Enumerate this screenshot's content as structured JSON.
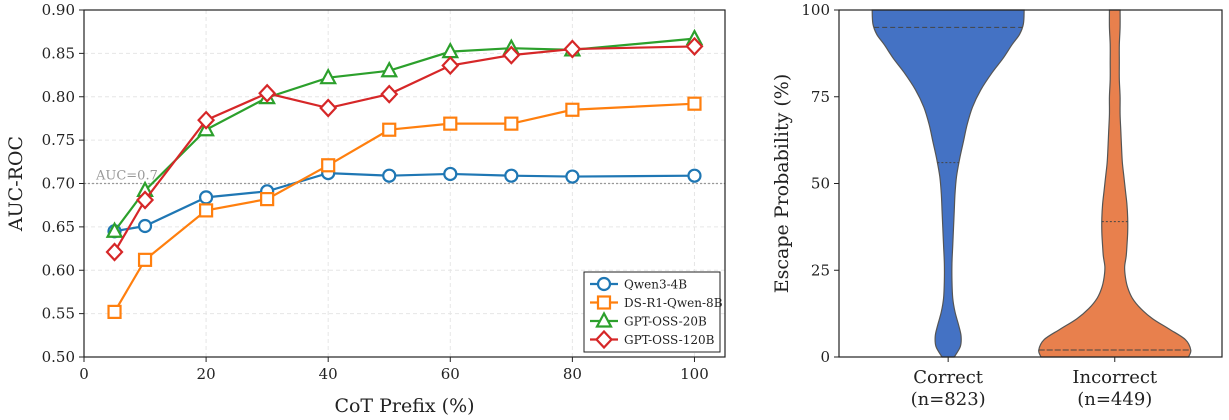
{
  "chart_data": [
    {
      "type": "line",
      "xlabel": "CoT Prefix (%)",
      "ylabel": "AUC-ROC",
      "xlim": [
        0,
        105
      ],
      "ylim": [
        0.5,
        0.9
      ],
      "xticks": [
        0,
        20,
        40,
        60,
        80,
        100
      ],
      "yticks": [
        0.5,
        0.55,
        0.6,
        0.65,
        0.7,
        0.75,
        0.8,
        0.85,
        0.9
      ],
      "ytick_labels": [
        "0.50",
        "0.55",
        "0.60",
        "0.65",
        "0.70",
        "0.75",
        "0.80",
        "0.85",
        "0.90"
      ],
      "grid": true,
      "legend_position": "bottom-right",
      "reference_line": {
        "y": 0.7,
        "label": "AUC=0.7"
      },
      "x": [
        5,
        10,
        20,
        30,
        40,
        50,
        60,
        70,
        80,
        100
      ],
      "series": [
        {
          "name": "Qwen3-4B",
          "color": "#1f77b4",
          "marker": "circle",
          "values": [
            0.645,
            0.651,
            0.684,
            0.691,
            0.712,
            0.709,
            0.711,
            0.709,
            0.708,
            0.709
          ]
        },
        {
          "name": "DS-R1-Qwen-8B",
          "color": "#ff7f0e",
          "marker": "square",
          "values": [
            0.552,
            0.612,
            0.669,
            0.682,
            0.721,
            0.762,
            0.769,
            0.769,
            0.785,
            0.792
          ]
        },
        {
          "name": "GPT-OSS-20B",
          "color": "#2ca02c",
          "marker": "triangle",
          "values": [
            0.645,
            0.692,
            0.762,
            0.799,
            0.822,
            0.83,
            0.852,
            0.856,
            0.854,
            0.867
          ]
        },
        {
          "name": "GPT-OSS-120B",
          "color": "#d62728",
          "marker": "diamond",
          "values": [
            0.621,
            0.681,
            0.773,
            0.804,
            0.787,
            0.803,
            0.836,
            0.848,
            0.855,
            0.858
          ]
        }
      ]
    },
    {
      "type": "violin",
      "ylabel": "Escape Probability (%)",
      "ylim": [
        0,
        100
      ],
      "yticks": [
        0,
        25,
        50,
        75,
        100
      ],
      "grid": false,
      "categories": [
        "Correct\n(n=823)",
        "Incorrect\n(n=449)"
      ],
      "groups": [
        {
          "label_lines": [
            "Correct",
            "(n=823)"
          ],
          "color": "#4472c4",
          "quartiles": {
            "q1": 56,
            "median": 95,
            "q3": 100
          },
          "density": [
            [
              0,
              0.08
            ],
            [
              3,
              0.16
            ],
            [
              6,
              0.17
            ],
            [
              9,
              0.14
            ],
            [
              13,
              0.09
            ],
            [
              17,
              0.06
            ],
            [
              22,
              0.05
            ],
            [
              27,
              0.05
            ],
            [
              32,
              0.06
            ],
            [
              37,
              0.07
            ],
            [
              42,
              0.08
            ],
            [
              47,
              0.09
            ],
            [
              52,
              0.11
            ],
            [
              57,
              0.15
            ],
            [
              62,
              0.2
            ],
            [
              67,
              0.25
            ],
            [
              72,
              0.32
            ],
            [
              77,
              0.43
            ],
            [
              82,
              0.58
            ],
            [
              86,
              0.72
            ],
            [
              90,
              0.84
            ],
            [
              93,
              0.94
            ],
            [
              96,
              0.99
            ],
            [
              100,
              1.0
            ]
          ]
        },
        {
          "label_lines": [
            "Incorrect",
            "(n=449)"
          ],
          "color": "#e8804d",
          "quartiles": {
            "q1": 2,
            "median": 2,
            "q3": 39
          },
          "density": [
            [
              0,
              0.97
            ],
            [
              2,
              1.0
            ],
            [
              5,
              0.93
            ],
            [
              8,
              0.72
            ],
            [
              11,
              0.5
            ],
            [
              14,
              0.34
            ],
            [
              17,
              0.23
            ],
            [
              20,
              0.17
            ],
            [
              23,
              0.14
            ],
            [
              26,
              0.13
            ],
            [
              29,
              0.15
            ],
            [
              32,
              0.16
            ],
            [
              36,
              0.17
            ],
            [
              40,
              0.17
            ],
            [
              44,
              0.16
            ],
            [
              48,
              0.14
            ],
            [
              52,
              0.12
            ],
            [
              56,
              0.1
            ],
            [
              60,
              0.09
            ],
            [
              65,
              0.08
            ],
            [
              70,
              0.07
            ],
            [
              75,
              0.07
            ],
            [
              80,
              0.06
            ],
            [
              85,
              0.06
            ],
            [
              90,
              0.06
            ],
            [
              95,
              0.07
            ],
            [
              100,
              0.07
            ]
          ]
        }
      ]
    }
  ]
}
